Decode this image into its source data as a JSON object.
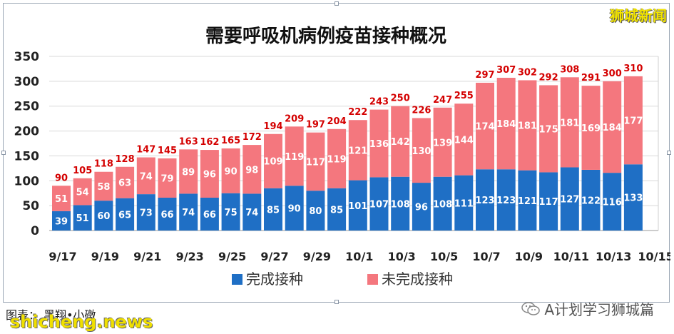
{
  "brand": "狮城新闻",
  "footer": {
    "credit": "图表：  黑翔•小礅",
    "watermark": "shicheng.news",
    "source": "A计划学习狮城篇"
  },
  "colors": {
    "completed": "#1f6fc5",
    "incomplete": "#f4777e",
    "total_label": "#d40000",
    "grid": "#d8d8d8"
  },
  "chart_data": {
    "type": "bar",
    "stacked": true,
    "title": "需要呼吸机病例疫苗接种概况",
    "xlabel": "",
    "ylabel": "",
    "ylim": [
      0,
      350
    ],
    "yticks": [
      0,
      50,
      100,
      150,
      200,
      250,
      300,
      350
    ],
    "grid": true,
    "legend_position": "bottom",
    "x_tick_labels": [
      "9/17",
      "9/19",
      "9/21",
      "9/23",
      "9/25",
      "9/27",
      "9/29",
      "10/1",
      "10/3",
      "10/5",
      "10/7",
      "10/9",
      "10/11",
      "10/13",
      "10/15"
    ],
    "categories": [
      "9/17",
      "9/18",
      "9/19",
      "9/20",
      "9/21",
      "9/22",
      "9/23",
      "9/24",
      "9/25",
      "9/26",
      "9/27",
      "9/28",
      "9/29",
      "9/30",
      "10/1",
      "10/2",
      "10/3",
      "10/4",
      "10/5",
      "10/6",
      "10/7",
      "10/8",
      "10/9",
      "10/10",
      "10/11",
      "10/12",
      "10/13",
      "10/14"
    ],
    "series": [
      {
        "name": "完成接种",
        "values": [
          39,
          51,
          60,
          65,
          73,
          66,
          74,
          66,
          75,
          74,
          85,
          90,
          80,
          85,
          101,
          107,
          108,
          96,
          108,
          111,
          123,
          123,
          121,
          117,
          127,
          122,
          116,
          133
        ]
      },
      {
        "name": "未完成接种",
        "values": [
          51,
          54,
          58,
          63,
          74,
          79,
          89,
          96,
          90,
          98,
          109,
          119,
          117,
          119,
          121,
          136,
          142,
          130,
          139,
          144,
          174,
          184,
          181,
          175,
          181,
          169,
          184,
          177
        ]
      }
    ],
    "totals": [
      90,
      105,
      118,
      128,
      147,
      145,
      163,
      162,
      165,
      172,
      194,
      209,
      197,
      204,
      222,
      243,
      250,
      226,
      247,
      255,
      297,
      307,
      302,
      292,
      308,
      291,
      300,
      310
    ]
  }
}
